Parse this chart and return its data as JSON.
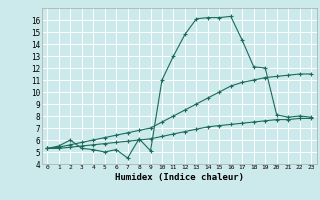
{
  "title": "",
  "xlabel": "Humidex (Indice chaleur)",
  "ylabel": "",
  "background_color": "#cce9ec",
  "line_color": "#1a6b5a",
  "grid_color": "#ffffff",
  "xlim": [
    -0.5,
    23.5
  ],
  "ylim": [
    4,
    17
  ],
  "yticks": [
    4,
    5,
    6,
    7,
    8,
    9,
    10,
    11,
    12,
    13,
    14,
    15,
    16
  ],
  "xticks": [
    0,
    1,
    2,
    3,
    4,
    5,
    6,
    7,
    8,
    9,
    10,
    11,
    12,
    13,
    14,
    15,
    16,
    17,
    18,
    19,
    20,
    21,
    22,
    23
  ],
  "xtick_labels": [
    "0",
    "1",
    "2",
    "3",
    "4",
    "5",
    "6",
    "7",
    "8",
    "9",
    "10",
    "11",
    "12",
    "13",
    "14",
    "15",
    "16",
    "17",
    "18",
    "19",
    "20",
    "21",
    "22",
    "23"
  ],
  "ytick_labels": [
    "4",
    "5",
    "6",
    "7",
    "8",
    "9",
    "10",
    "11",
    "12",
    "13",
    "14",
    "15",
    "16"
  ],
  "series": [
    {
      "x": [
        0,
        1,
        2,
        3,
        4,
        5,
        6,
        7,
        8,
        9,
        10,
        11,
        12,
        13,
        14,
        15,
        16,
        17,
        18,
        19,
        20,
        21,
        22,
        23
      ],
      "y": [
        5.3,
        5.5,
        6.0,
        5.3,
        5.2,
        5.0,
        5.2,
        4.5,
        6.1,
        5.1,
        11.0,
        13.0,
        14.8,
        16.1,
        16.2,
        16.2,
        16.3,
        14.3,
        12.1,
        12.0,
        8.1,
        7.9,
        8.0,
        7.9
      ]
    },
    {
      "x": [
        0,
        1,
        2,
        3,
        4,
        5,
        6,
        7,
        8,
        9,
        10,
        11,
        12,
        13,
        14,
        15,
        16,
        17,
        18,
        19,
        20,
        21,
        22,
        23
      ],
      "y": [
        5.3,
        5.4,
        5.6,
        5.8,
        6.0,
        6.2,
        6.4,
        6.6,
        6.8,
        7.0,
        7.5,
        8.0,
        8.5,
        9.0,
        9.5,
        10.0,
        10.5,
        10.8,
        11.0,
        11.2,
        11.3,
        11.4,
        11.5,
        11.5
      ]
    },
    {
      "x": [
        0,
        1,
        2,
        3,
        4,
        5,
        6,
        7,
        8,
        9,
        10,
        11,
        12,
        13,
        14,
        15,
        16,
        17,
        18,
        19,
        20,
        21,
        22,
        23
      ],
      "y": [
        5.3,
        5.3,
        5.4,
        5.5,
        5.6,
        5.7,
        5.8,
        5.9,
        6.0,
        6.1,
        6.3,
        6.5,
        6.7,
        6.9,
        7.1,
        7.2,
        7.3,
        7.4,
        7.5,
        7.6,
        7.7,
        7.7,
        7.8,
        7.8
      ]
    }
  ]
}
